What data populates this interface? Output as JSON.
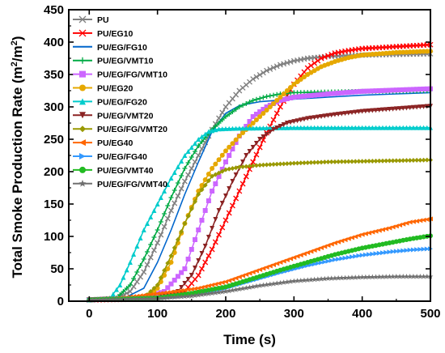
{
  "chart_data": {
    "type": "line",
    "title": "",
    "xlabel": "Time (s)",
    "ylabel_main": "Total Smoke Production Rate (m",
    "ylabel_sup1": "2",
    "ylabel_mid": "/m",
    "ylabel_sup2": "2",
    "ylabel_end": ")",
    "xlim": [
      -30,
      500
    ],
    "ylim": [
      0,
      450
    ],
    "xticks": [
      0,
      100,
      200,
      300,
      400,
      500
    ],
    "yticks": [
      0,
      50,
      100,
      150,
      200,
      250,
      300,
      350,
      400,
      450
    ],
    "legend_position": "top-left",
    "grid": false,
    "series": [
      {
        "name": "PU",
        "color": "#808080",
        "marker": "x",
        "points": [
          [
            0,
            2
          ],
          [
            40,
            4
          ],
          [
            60,
            15
          ],
          [
            80,
            45
          ],
          [
            100,
            90
          ],
          [
            120,
            140
          ],
          [
            140,
            185
          ],
          [
            160,
            225
          ],
          [
            180,
            265
          ],
          [
            200,
            300
          ],
          [
            220,
            325
          ],
          [
            240,
            343
          ],
          [
            260,
            356
          ],
          [
            280,
            365
          ],
          [
            300,
            371
          ],
          [
            320,
            375
          ],
          [
            350,
            378
          ],
          [
            400,
            380
          ],
          [
            450,
            381
          ],
          [
            500,
            382
          ]
        ]
      },
      {
        "name": "PU/EG10",
        "color": "#ff0000",
        "marker": "x",
        "points": [
          [
            0,
            2
          ],
          [
            60,
            3
          ],
          [
            100,
            6
          ],
          [
            140,
            15
          ],
          [
            160,
            40
          ],
          [
            180,
            80
          ],
          [
            200,
            125
          ],
          [
            220,
            170
          ],
          [
            240,
            215
          ],
          [
            260,
            260
          ],
          [
            280,
            300
          ],
          [
            300,
            335
          ],
          [
            320,
            360
          ],
          [
            340,
            375
          ],
          [
            360,
            383
          ],
          [
            380,
            387
          ],
          [
            400,
            390
          ],
          [
            450,
            393
          ],
          [
            500,
            396
          ]
        ]
      },
      {
        "name": "PU/EG/FG10",
        "color": "#0066cc",
        "marker": "none",
        "points": [
          [
            0,
            2
          ],
          [
            50,
            4
          ],
          [
            80,
            20
          ],
          [
            100,
            60
          ],
          [
            120,
            110
          ],
          [
            140,
            165
          ],
          [
            160,
            215
          ],
          [
            180,
            262
          ],
          [
            200,
            290
          ],
          [
            220,
            302
          ],
          [
            250,
            308
          ],
          [
            300,
            312
          ],
          [
            350,
            315
          ],
          [
            400,
            318
          ],
          [
            450,
            320
          ],
          [
            500,
            322
          ]
        ]
      },
      {
        "name": "PU/EG/VMT10",
        "color": "#00aa44",
        "marker": "+",
        "points": [
          [
            0,
            2
          ],
          [
            40,
            5
          ],
          [
            60,
            25
          ],
          [
            80,
            65
          ],
          [
            100,
            110
          ],
          [
            120,
            160
          ],
          [
            140,
            205
          ],
          [
            160,
            240
          ],
          [
            180,
            265
          ],
          [
            200,
            285
          ],
          [
            220,
            300
          ],
          [
            240,
            310
          ],
          [
            260,
            316
          ],
          [
            280,
            320
          ],
          [
            300,
            322
          ],
          [
            350,
            323
          ],
          [
            400,
            324
          ],
          [
            450,
            324
          ],
          [
            500,
            325
          ]
        ]
      },
      {
        "name": "PU/EG/FG/VMT10",
        "color": "#cc66ff",
        "marker": "square",
        "points": [
          [
            0,
            2
          ],
          [
            80,
            5
          ],
          [
            110,
            15
          ],
          [
            140,
            50
          ],
          [
            160,
            110
          ],
          [
            180,
            170
          ],
          [
            200,
            215
          ],
          [
            220,
            255
          ],
          [
            240,
            285
          ],
          [
            260,
            300
          ],
          [
            280,
            310
          ],
          [
            300,
            315
          ],
          [
            350,
            320
          ],
          [
            400,
            324
          ],
          [
            450,
            326
          ],
          [
            500,
            328
          ]
        ]
      },
      {
        "name": "PU/EG20",
        "color": "#e6a800",
        "marker": "circle",
        "points": [
          [
            0,
            2
          ],
          [
            80,
            5
          ],
          [
            100,
            20
          ],
          [
            120,
            60
          ],
          [
            140,
            120
          ],
          [
            160,
            170
          ],
          [
            180,
            205
          ],
          [
            200,
            232
          ],
          [
            220,
            255
          ],
          [
            240,
            275
          ],
          [
            260,
            295
          ],
          [
            280,
            315
          ],
          [
            300,
            335
          ],
          [
            320,
            350
          ],
          [
            340,
            362
          ],
          [
            360,
            370
          ],
          [
            380,
            376
          ],
          [
            400,
            380
          ],
          [
            450,
            384
          ],
          [
            500,
            386
          ]
        ]
      },
      {
        "name": "PU/EG/FG20",
        "color": "#00cccc",
        "marker": "triangle-up",
        "points": [
          [
            0,
            2
          ],
          [
            30,
            4
          ],
          [
            45,
            25
          ],
          [
            60,
            60
          ],
          [
            80,
            110
          ],
          [
            100,
            150
          ],
          [
            120,
            190
          ],
          [
            140,
            225
          ],
          [
            160,
            250
          ],
          [
            175,
            262
          ],
          [
            190,
            266
          ],
          [
            220,
            267
          ],
          [
            300,
            268
          ],
          [
            400,
            268
          ],
          [
            500,
            268
          ]
        ]
      },
      {
        "name": "PU/EG/VMT20",
        "color": "#8b2323",
        "marker": "triangle-down",
        "points": [
          [
            0,
            2
          ],
          [
            100,
            5
          ],
          [
            130,
            15
          ],
          [
            150,
            40
          ],
          [
            170,
            85
          ],
          [
            190,
            140
          ],
          [
            210,
            185
          ],
          [
            230,
            225
          ],
          [
            250,
            250
          ],
          [
            270,
            265
          ],
          [
            290,
            275
          ],
          [
            320,
            282
          ],
          [
            360,
            288
          ],
          [
            400,
            293
          ],
          [
            450,
            297
          ],
          [
            500,
            301
          ]
        ]
      },
      {
        "name": "PU/EG/FG/VMT20",
        "color": "#999900",
        "marker": "diamond",
        "points": [
          [
            0,
            2
          ],
          [
            80,
            5
          ],
          [
            100,
            25
          ],
          [
            120,
            70
          ],
          [
            140,
            120
          ],
          [
            160,
            165
          ],
          [
            180,
            193
          ],
          [
            200,
            203
          ],
          [
            220,
            207
          ],
          [
            250,
            210
          ],
          [
            300,
            213
          ],
          [
            350,
            215
          ],
          [
            400,
            216
          ],
          [
            450,
            217
          ],
          [
            500,
            218
          ]
        ]
      },
      {
        "name": "PU/EG40",
        "color": "#ff6600",
        "marker": "triangle-left",
        "points": [
          [
            0,
            2
          ],
          [
            40,
            4
          ],
          [
            80,
            9
          ],
          [
            120,
            14
          ],
          [
            160,
            20
          ],
          [
            200,
            30
          ],
          [
            240,
            45
          ],
          [
            280,
            60
          ],
          [
            320,
            75
          ],
          [
            360,
            90
          ],
          [
            400,
            103
          ],
          [
            440,
            113
          ],
          [
            470,
            122
          ],
          [
            500,
            127
          ]
        ]
      },
      {
        "name": "PU/EG/FG40",
        "color": "#3399ff",
        "marker": "triangle-right",
        "points": [
          [
            0,
            2
          ],
          [
            100,
            5
          ],
          [
            150,
            10
          ],
          [
            200,
            20
          ],
          [
            240,
            32
          ],
          [
            280,
            44
          ],
          [
            320,
            55
          ],
          [
            360,
            64
          ],
          [
            400,
            71
          ],
          [
            440,
            76
          ],
          [
            470,
            79
          ],
          [
            500,
            81
          ]
        ]
      },
      {
        "name": "PU/EG/VMT40",
        "color": "#22bb22",
        "marker": "circle",
        "points": [
          [
            0,
            2
          ],
          [
            100,
            5
          ],
          [
            150,
            12
          ],
          [
            200,
            22
          ],
          [
            240,
            35
          ],
          [
            280,
            48
          ],
          [
            320,
            60
          ],
          [
            360,
            72
          ],
          [
            400,
            82
          ],
          [
            440,
            90
          ],
          [
            470,
            96
          ],
          [
            500,
            101
          ]
        ]
      },
      {
        "name": "PU/EG/FG/VMT40",
        "color": "#707070",
        "marker": "star",
        "points": [
          [
            0,
            2
          ],
          [
            100,
            4
          ],
          [
            150,
            8
          ],
          [
            200,
            15
          ],
          [
            250,
            24
          ],
          [
            300,
            31
          ],
          [
            350,
            35
          ],
          [
            400,
            37
          ],
          [
            450,
            38
          ],
          [
            500,
            38
          ]
        ]
      }
    ]
  }
}
